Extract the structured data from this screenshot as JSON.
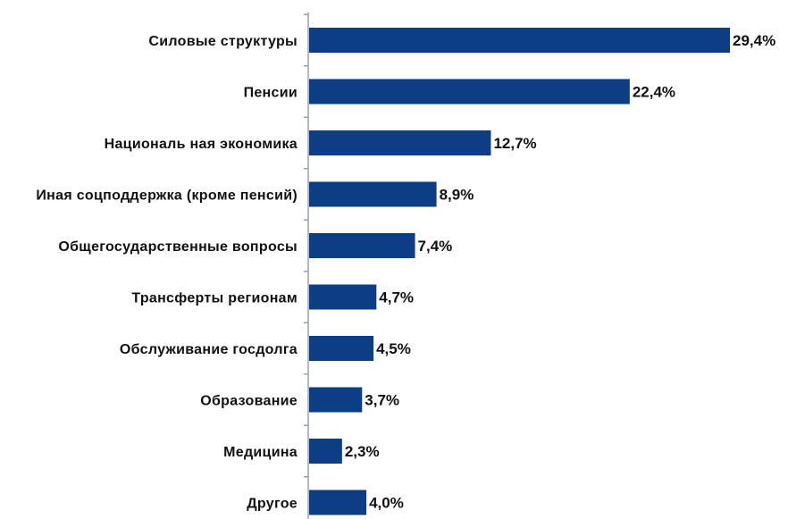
{
  "chart_data": {
    "type": "bar",
    "orientation": "horizontal",
    "categories": [
      "Силовые структуры",
      "Пенсии",
      "Националь ная экономика",
      "Иная соцподдержка (кроме пенсий)",
      "Общегосударственные вопросы",
      "Трансферты регионам",
      "Обслуживание госдолга",
      "Образование",
      "Медицина",
      "Другое"
    ],
    "values": [
      29.4,
      22.4,
      12.7,
      8.9,
      7.4,
      4.7,
      4.5,
      3.7,
      2.3,
      4.0
    ],
    "value_labels": [
      "29,4%",
      "22,4%",
      "12,7%",
      "8,9%",
      "7,4%",
      "4,7%",
      "4,5%",
      "3,7%",
      "2,3%",
      "4,0%"
    ],
    "title": "",
    "xlabel": "",
    "ylabel": "",
    "xlim": [
      0,
      29.4
    ],
    "grid": false,
    "legend": "none",
    "bar_color": "#0d3d85",
    "axis_color": "#9aa0a8"
  }
}
